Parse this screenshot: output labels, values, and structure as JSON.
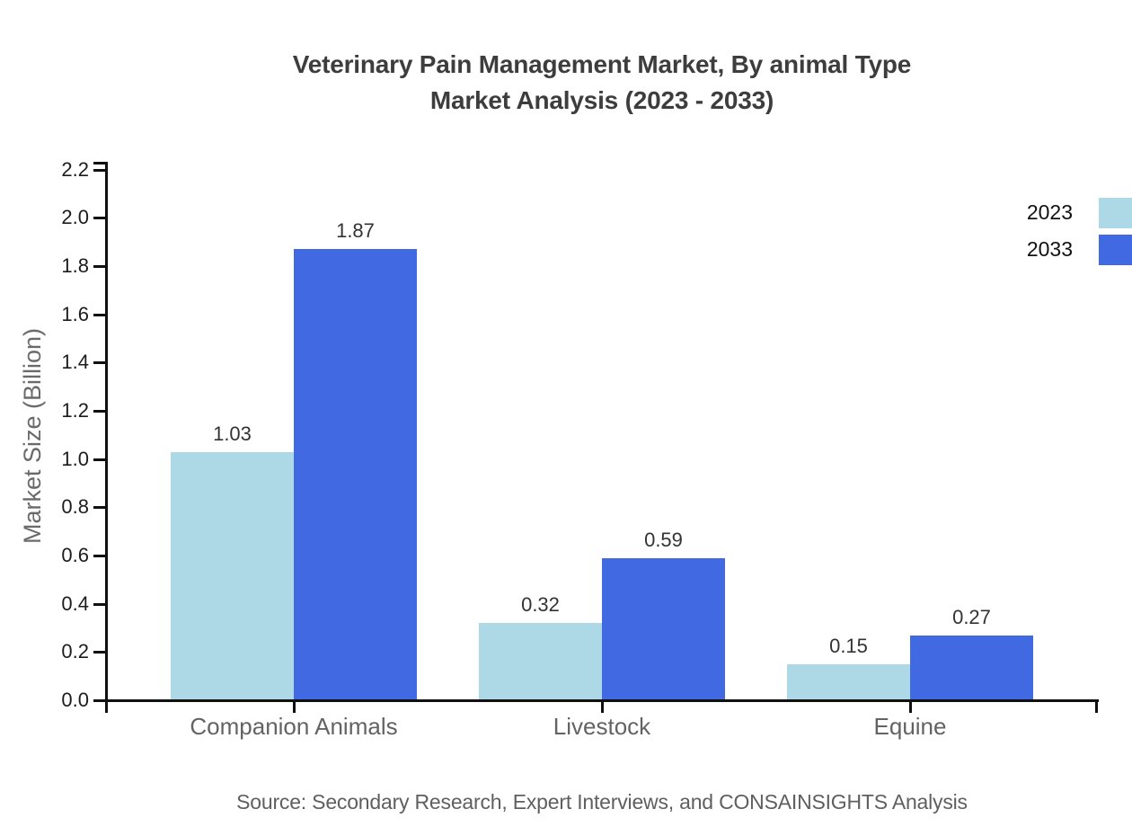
{
  "title": {
    "line1": "Veterinary Pain Management Market, By animal Type",
    "line2": "Market Analysis (2023 - 2033)"
  },
  "source": "Source: Secondary Research, Expert Interviews, and CONSAINSIGHTS Analysis",
  "chart_data": {
    "type": "bar",
    "title": "Veterinary Pain Management Market, By animal Type Market Analysis (2023 - 2033)",
    "categories": [
      "Companion Animals",
      "Livestock",
      "Equine"
    ],
    "series": [
      {
        "name": "2023",
        "color": "#ADD8E6",
        "values": [
          1.03,
          0.32,
          0.15
        ]
      },
      {
        "name": "2033",
        "color": "#4169E1",
        "values": [
          1.87,
          0.59,
          0.27
        ]
      }
    ],
    "xlabel": "",
    "ylabel": "Market Size (Billion)",
    "ylim": [
      0,
      2.2
    ],
    "ytick_labels": [
      "0.0",
      "0.2",
      "0.4",
      "0.6",
      "0.8",
      "1.0",
      "1.2",
      "1.4",
      "1.6",
      "1.8",
      "2.0",
      "2.2"
    ],
    "grid": "off",
    "value_labels": "on",
    "legend_position": "top-right",
    "colors": {
      "series_2023": "#ADD8E6",
      "series_2033": "#4169E1",
      "axis": "#101010",
      "title_text": "#3d3d3d",
      "label_text": "#636363"
    }
  }
}
